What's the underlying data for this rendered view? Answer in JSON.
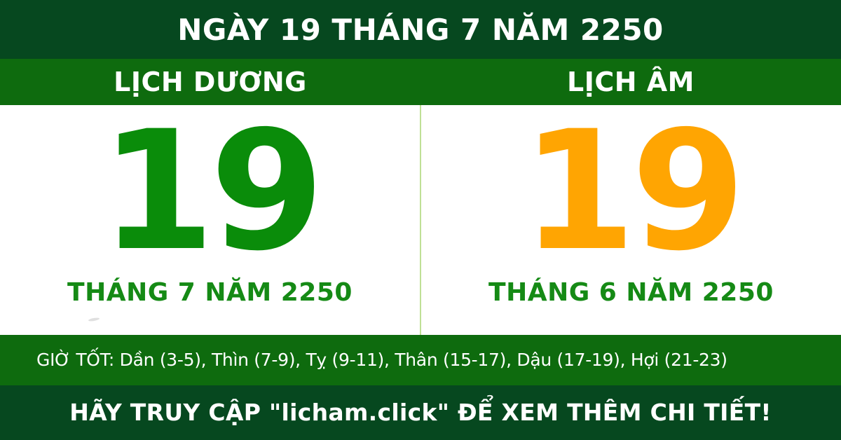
{
  "header": {
    "title": "NGÀY 19 THÁNG 7 NĂM 2250"
  },
  "subheader": {
    "solar_label": "LỊCH DƯƠNG",
    "lunar_label": "LỊCH ÂM"
  },
  "solar": {
    "day": "19",
    "month_year": "THÁNG 7 NĂM 2250"
  },
  "lunar": {
    "day": "19",
    "month_year": "THÁNG 6 NĂM 2250"
  },
  "good_hours": {
    "text": "GIỜ TỐT: Dần (3-5), Thìn (7-9), Tỵ (9-11), Thân (15-17), Dậu (17-19), Hợi (21-23)"
  },
  "footer": {
    "text": "HÃY TRUY CẬP \"licham.click\" ĐỂ XEM THÊM CHI TIẾT!"
  },
  "colors": {
    "dark_green": "#06481f",
    "green": "#0e6b0e",
    "day_green": "#0a8c0a",
    "label_green": "#158a15",
    "day_orange": "#ffa502",
    "divider": "#bfe096",
    "text_white": "#ffffff",
    "panel_bg": "#ffffff"
  }
}
